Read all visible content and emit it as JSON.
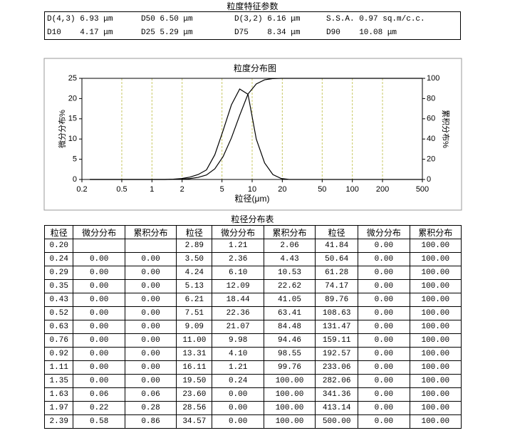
{
  "header": {
    "title": "粒度特征参数",
    "params": [
      [
        "D(4,3) 6.93 μm",
        "D50 6.50 μm",
        "D(3,2) 6.16 μm",
        "S.S.A. 0.97 sq.m/c.c."
      ],
      [
        "D10    4.17 μm",
        "D25 5.29 μm",
        "D75    8.34 μm",
        "D90    10.08 μm"
      ]
    ]
  },
  "chart_data": {
    "type": "line",
    "title": "粒度分布图",
    "x_label": "粒径(μm)",
    "y_label": "微分分布%",
    "y2_label": "累积分布%",
    "x": [
      0.2,
      0.24,
      0.29,
      0.35,
      0.43,
      0.52,
      0.63,
      0.76,
      0.92,
      1.11,
      1.35,
      1.63,
      1.97,
      2.39,
      2.89,
      3.5,
      4.24,
      5.13,
      6.21,
      7.51,
      9.09,
      11.0,
      13.31,
      16.11,
      19.5,
      23.6,
      28.56,
      34.57,
      41.84,
      50.64,
      61.28,
      74.17,
      89.76,
      108.63,
      131.47,
      159.11,
      192.57,
      233.06,
      282.06,
      341.36,
      413.14,
      500.0
    ],
    "series": [
      {
        "color": "#000000",
        "values": [
          null,
          0,
          0,
          0,
          0,
          0,
          0,
          0,
          0,
          0,
          0,
          0.06,
          0.22,
          0.58,
          1.21,
          2.36,
          6.1,
          12.09,
          18.44,
          22.36,
          21.07,
          9.98,
          4.1,
          1.21,
          0.24,
          0,
          0,
          0,
          0,
          0,
          0,
          0,
          0,
          0,
          0,
          0,
          0,
          0,
          0,
          0,
          0,
          0
        ]
      },
      {
        "color": "#000000",
        "axis": "y2",
        "values": [
          null,
          0,
          0,
          0,
          0,
          0,
          0,
          0,
          0,
          0,
          0,
          0.06,
          0.28,
          0.86,
          2.06,
          4.43,
          10.53,
          22.62,
          41.05,
          63.41,
          84.48,
          94.46,
          98.55,
          99.76,
          100,
          100,
          100,
          100,
          100,
          100,
          100,
          100,
          100,
          100,
          100,
          100,
          100,
          100,
          100,
          100,
          100,
          100
        ]
      }
    ],
    "xlim": [
      0.2,
      500
    ],
    "xticks": [
      0.2,
      0.5,
      1,
      2,
      5,
      10,
      20,
      50,
      100,
      200,
      500
    ],
    "xlog": true,
    "ylim": [
      0,
      25
    ],
    "yticks": [
      0,
      5,
      10,
      15,
      20,
      25
    ],
    "y2lim": [
      0,
      100
    ],
    "y2ticks": [
      0,
      20,
      40,
      60,
      80,
      100
    ],
    "grid": true,
    "grid_color": "#c8c864"
  },
  "table": {
    "title": "粒径分布表",
    "columns": [
      "粒径",
      "微分分布",
      "累积分布",
      "粒径",
      "微分分布",
      "累积分布",
      "粒径",
      "微分分布",
      "累积分布"
    ],
    "rows": [
      [
        "0.20",
        null,
        null,
        "2.89",
        "1.21",
        "2.06",
        "41.84",
        "0.00",
        "100.00"
      ],
      [
        "0.24",
        "0.00",
        "0.00",
        "3.50",
        "2.36",
        "4.43",
        "50.64",
        "0.00",
        "100.00"
      ],
      [
        "0.29",
        "0.00",
        "0.00",
        "4.24",
        "6.10",
        "10.53",
        "61.28",
        "0.00",
        "100.00"
      ],
      [
        "0.35",
        "0.00",
        "0.00",
        "5.13",
        "12.09",
        "22.62",
        "74.17",
        "0.00",
        "100.00"
      ],
      [
        "0.43",
        "0.00",
        "0.00",
        "6.21",
        "18.44",
        "41.05",
        "89.76",
        "0.00",
        "100.00"
      ],
      [
        "0.52",
        "0.00",
        "0.00",
        "7.51",
        "22.36",
        "63.41",
        "108.63",
        "0.00",
        "100.00"
      ],
      [
        "0.63",
        "0.00",
        "0.00",
        "9.09",
        "21.07",
        "84.48",
        "131.47",
        "0.00",
        "100.00"
      ],
      [
        "0.76",
        "0.00",
        "0.00",
        "11.00",
        "9.98",
        "94.46",
        "159.11",
        "0.00",
        "100.00"
      ],
      [
        "0.92",
        "0.00",
        "0.00",
        "13.31",
        "4.10",
        "98.55",
        "192.57",
        "0.00",
        "100.00"
      ],
      [
        "1.11",
        "0.00",
        "0.00",
        "16.11",
        "1.21",
        "99.76",
        "233.06",
        "0.00",
        "100.00"
      ],
      [
        "1.35",
        "0.00",
        "0.00",
        "19.50",
        "0.24",
        "100.00",
        "282.06",
        "0.00",
        "100.00"
      ],
      [
        "1.63",
        "0.06",
        "0.06",
        "23.60",
        "0.00",
        "100.00",
        "341.36",
        "0.00",
        "100.00"
      ],
      [
        "1.97",
        "0.22",
        "0.28",
        "28.56",
        "0.00",
        "100.00",
        "413.14",
        "0.00",
        "100.00"
      ],
      [
        "2.39",
        "0.58",
        "0.86",
        "34.57",
        "0.00",
        "100.00",
        "500.00",
        "0.00",
        "100.00"
      ]
    ]
  }
}
